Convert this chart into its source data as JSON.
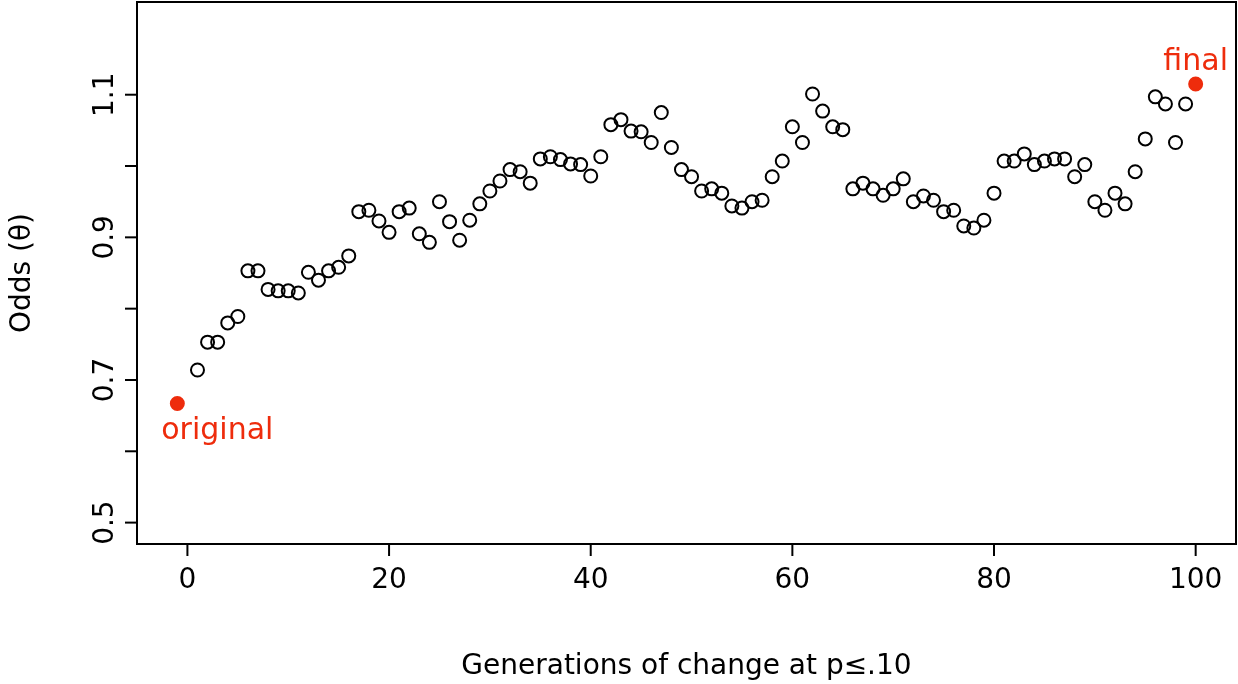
{
  "chart_data": {
    "type": "scatter",
    "xlabel": "Generations of change at p≤.10",
    "ylabel": "Odds (θ)",
    "xlim": [
      -5,
      104
    ],
    "ylim": [
      0.47,
      1.23
    ],
    "xticks": [
      0,
      20,
      40,
      60,
      80,
      100
    ],
    "yticks": [
      0.5,
      {
        "value": 0.6,
        "label": null
      },
      0.7,
      {
        "value": 0.8,
        "label": null
      },
      0.9,
      {
        "value": 1.0,
        "label": null
      },
      1.1
    ],
    "marker": "circle",
    "grid": false,
    "legend": false,
    "series": [
      {
        "color": "#000000",
        "x": [
          1,
          2,
          3,
          4,
          5,
          6,
          7,
          8,
          9,
          10,
          11,
          12,
          13,
          14,
          15,
          16,
          17,
          18,
          19,
          20,
          21,
          22,
          23,
          24,
          25,
          26,
          27,
          28,
          29,
          30,
          31,
          32,
          33,
          34,
          35,
          36,
          37,
          38,
          39,
          40,
          41,
          42,
          43,
          44,
          45,
          46,
          47,
          48,
          49,
          50,
          51,
          52,
          53,
          54,
          55,
          56,
          57,
          58,
          59,
          60,
          61,
          62,
          63,
          64,
          65,
          66,
          67,
          68,
          69,
          70,
          71,
          72,
          73,
          74,
          75,
          76,
          77,
          78,
          79,
          80,
          81,
          82,
          83,
          84,
          85,
          86,
          87,
          88,
          89,
          90,
          91,
          92,
          93,
          94,
          95,
          96,
          97,
          98,
          99
        ],
        "values": [
          0.714,
          0.753,
          0.753,
          0.78,
          0.789,
          0.853,
          0.853,
          0.827,
          0.825,
          0.825,
          0.822,
          0.851,
          0.84,
          0.853,
          0.858,
          0.874,
          0.936,
          0.938,
          0.923,
          0.907,
          0.936,
          0.941,
          0.905,
          0.893,
          0.95,
          0.922,
          0.896,
          0.924,
          0.947,
          0.965,
          0.979,
          0.995,
          0.992,
          0.976,
          1.01,
          1.013,
          1.009,
          1.003,
          1.002,
          0.986,
          1.013,
          1.058,
          1.065,
          1.049,
          1.048,
          1.033,
          1.075,
          1.026,
          0.995,
          0.985,
          0.965,
          0.968,
          0.962,
          0.944,
          0.941,
          0.95,
          0.952,
          0.985,
          1.007,
          1.055,
          1.033,
          1.101,
          1.077,
          1.055,
          1.051,
          0.968,
          0.976,
          0.968,
          0.959,
          0.968,
          0.982,
          0.95,
          0.958,
          0.952,
          0.936,
          0.938,
          0.916,
          0.913,
          0.924,
          0.962,
          1.007,
          1.007,
          1.017,
          1.002,
          1.007,
          1.01,
          1.01,
          0.985,
          1.002,
          0.95,
          0.938,
          0.962,
          0.947,
          0.992,
          1.038,
          1.097,
          1.087,
          1.033,
          1.087
        ]
      },
      {
        "color": "#ee2c0c",
        "x": [
          -1,
          100
        ],
        "values": [
          0.667,
          1.115
        ]
      }
    ],
    "annotations": [
      {
        "text": "original",
        "x": -1,
        "y": 0.667
      },
      {
        "text": "final",
        "x": 100,
        "y": 1.115
      }
    ]
  }
}
